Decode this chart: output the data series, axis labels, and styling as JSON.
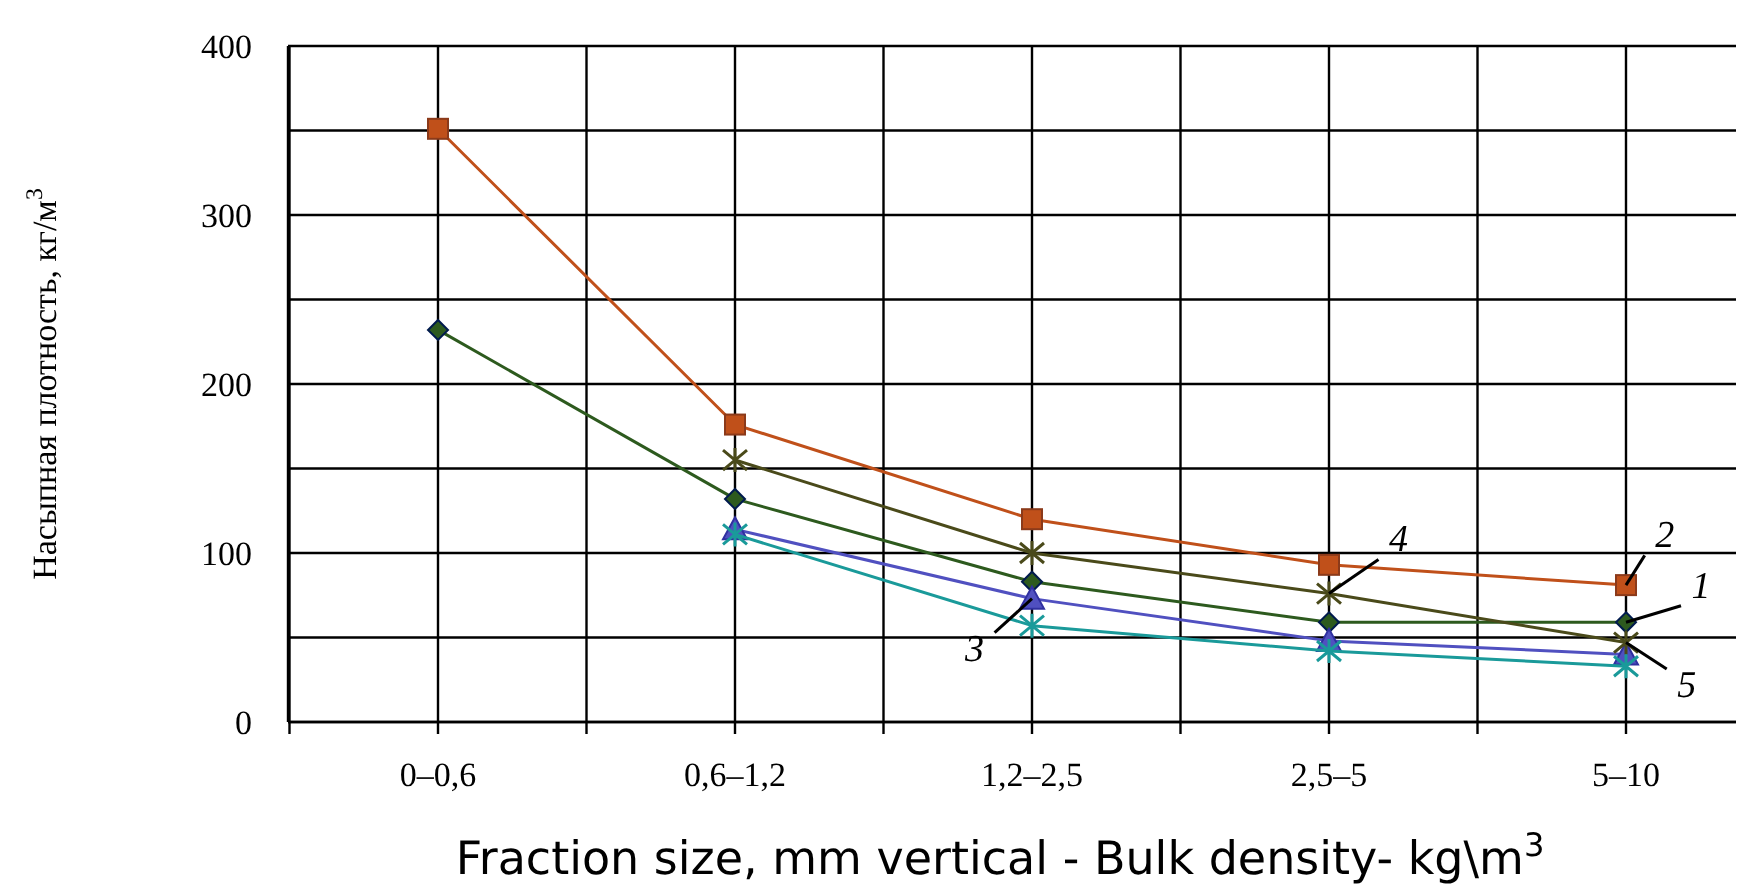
{
  "chart_data": {
    "type": "line",
    "xlabel": "Fraction size, mm vertical - Bulk density- kg\\m$^{3}$",
    "ylabel": "Насыпная плотность, кг/м$^{3}$",
    "categories": [
      "0–0,6",
      "0,6–1,2",
      "1,2–2,5",
      "2,5–5",
      "5–10"
    ],
    "ylim": [
      0,
      400
    ],
    "yticks": [
      0,
      {
        "value": 50,
        "label": null
      },
      100,
      {
        "value": 150,
        "label": null
      },
      200,
      {
        "value": 250,
        "label": null
      },
      300,
      {
        "value": 350,
        "label": null
      },
      400
    ],
    "grid": true,
    "series": [
      {
        "color": "#2d5a1e",
        "marker": "diamond",
        "values": [
          232,
          132,
          83,
          59,
          59
        ]
      },
      {
        "color": "#c0501a",
        "marker": "square",
        "values": [
          351,
          176,
          120,
          93,
          81
        ]
      },
      {
        "color": "#5050c0",
        "marker": "triangle",
        "values": [
          null,
          114,
          73,
          48,
          40
        ]
      },
      {
        "color": "#4a4a1a",
        "marker": "cross",
        "values": [
          null,
          155,
          100,
          76,
          47
        ]
      },
      {
        "color": "#1a9a9a",
        "marker": "cross",
        "values": [
          null,
          111,
          57,
          42,
          33
        ]
      }
    ],
    "annotations": [
      {
        "text": "1",
        "x": "5–10",
        "y": 59
      },
      {
        "text": "2",
        "x": "5–10",
        "y": 81
      },
      {
        "text": "3",
        "x": "1,2–2,5",
        "y": 73
      },
      {
        "text": "4",
        "x": "2,5–5",
        "y": 76
      },
      {
        "text": "5",
        "x": "5–10",
        "y": 47
      }
    ]
  }
}
